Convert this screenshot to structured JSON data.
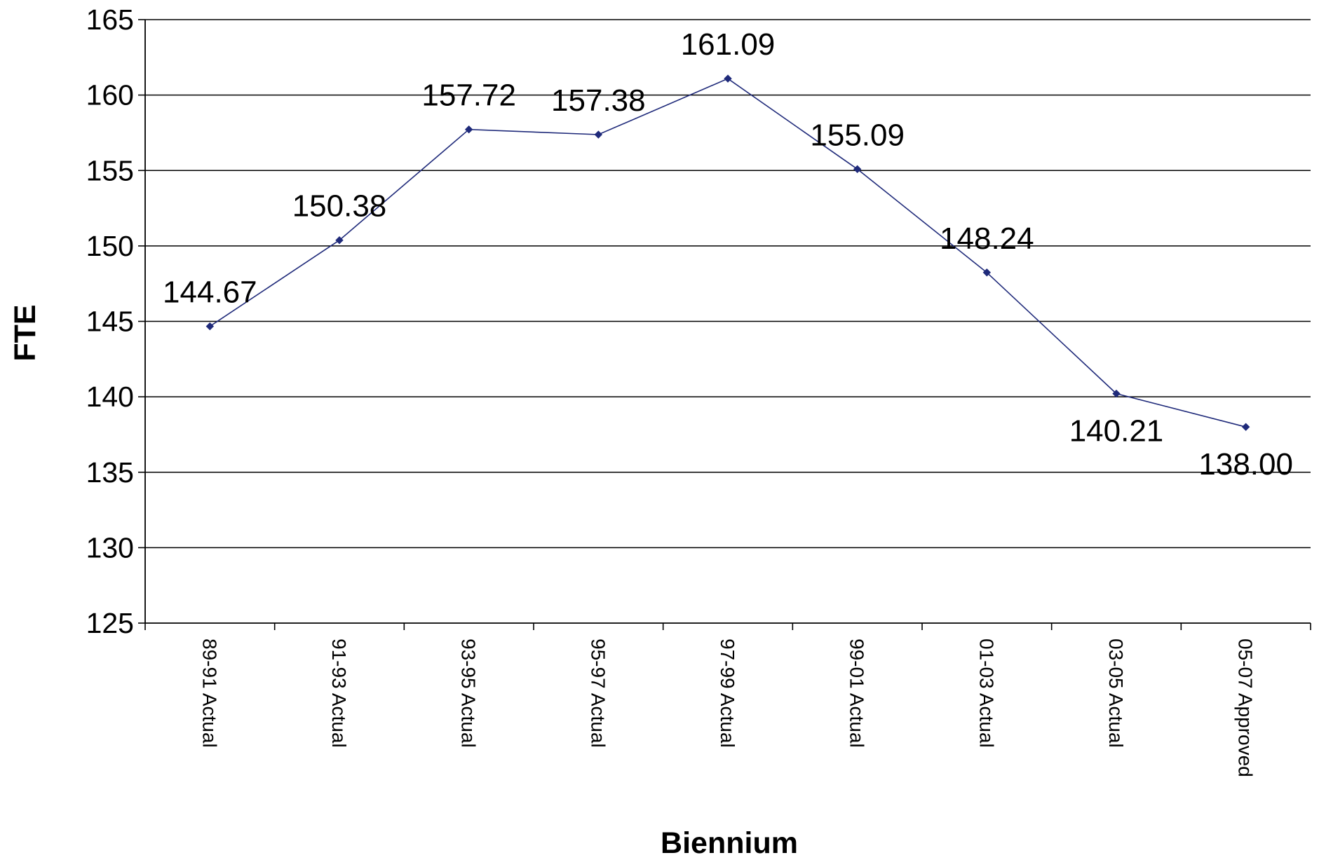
{
  "chart_data": {
    "type": "line",
    "title": "",
    "xlabel": "Biennium",
    "ylabel": "FTE",
    "ylim": [
      125,
      165
    ],
    "yticks": [
      125,
      130,
      135,
      140,
      145,
      150,
      155,
      160,
      165
    ],
    "grid": true,
    "legend": "none",
    "categories": [
      "89-91 Actual",
      "91-93 Actual",
      "93-95 Actual",
      "95-97 Actual",
      "97-99 Actual",
      "99-01 Actual",
      "01-03 Actual",
      "03-05 Actual",
      "05-07 Approved"
    ],
    "series": [
      {
        "values": [
          144.67,
          150.38,
          157.72,
          157.38,
          161.09,
          155.09,
          148.24,
          140.21,
          138.0
        ],
        "labels": [
          "144.67",
          "150.38",
          "157.72",
          "157.38",
          "161.09",
          "155.09",
          "148.24",
          "140.21",
          "138.00"
        ],
        "color": "#1f2a7a"
      }
    ]
  },
  "colors": {
    "line": "#1f2a7a",
    "grid": "#000000",
    "background": "#ffffff"
  }
}
